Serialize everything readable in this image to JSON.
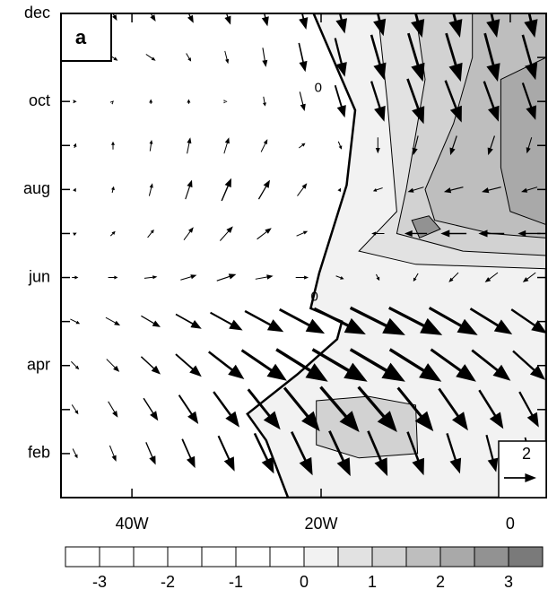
{
  "chart_data": {
    "type": "hovmoller",
    "panel_label": "a",
    "xlim": [
      -47.5,
      3.8
    ],
    "ylim": [
      1,
      12
    ],
    "xticks": [
      {
        "value": -40,
        "label": "40W"
      },
      {
        "value": -20,
        "label": "20W"
      },
      0
    ],
    "yticks": [
      {
        "value": 2,
        "label": "feb"
      },
      {
        "value": 3,
        "label": null
      },
      {
        "value": 4,
        "label": "apr"
      },
      {
        "value": 5,
        "label": null
      },
      {
        "value": 6,
        "label": "jun"
      },
      {
        "value": 7,
        "label": null
      },
      {
        "value": 8,
        "label": "aug"
      },
      {
        "value": 9,
        "label": null
      },
      {
        "value": 10,
        "label": "oct"
      },
      {
        "value": 11,
        "label": null
      },
      {
        "value": 12,
        "label": "dec"
      }
    ],
    "levels": [
      -3.5,
      -3,
      -2.5,
      -2,
      -1.5,
      -1,
      -0.5,
      0,
      0.5,
      1,
      1.5,
      2,
      2.5,
      3,
      3.5
    ],
    "colors": [
      "#ffffff",
      "#ffffff",
      "#ffffff",
      "#ffffff",
      "#ffffff",
      "#ffffff",
      "#ffffff",
      "#f2f2f2",
      "#e2e2e2",
      "#d2d2d2",
      "#bebebe",
      "#a9a9a9",
      "#929292",
      "#7a7a7a"
    ],
    "colorbar_ticks": [
      -3,
      -2,
      -1,
      0,
      1,
      2,
      3
    ],
    "shaded_regions": [
      {
        "level": 0,
        "points": [
          [
            -20.8,
            12
          ],
          [
            3.8,
            12
          ],
          [
            3.8,
            1
          ],
          [
            -23.5,
            1
          ],
          [
            -25.8,
            2.3
          ],
          [
            -27.8,
            2.9
          ],
          [
            -22.5,
            3.8
          ],
          [
            -18.3,
            4.6
          ],
          [
            -17.8,
            5.0
          ],
          [
            -21.1,
            5.3
          ],
          [
            -20.2,
            6.1
          ],
          [
            -17.3,
            8.1
          ],
          [
            -16.4,
            9.8
          ]
        ]
      },
      {
        "level": 0.5,
        "points": [
          [
            -14,
            12
          ],
          [
            3.8,
            12
          ],
          [
            3.8,
            6.2
          ],
          [
            -10,
            6.3
          ],
          [
            -16,
            6.6
          ],
          [
            -12,
            7.5
          ],
          [
            -13,
            10
          ]
        ]
      },
      {
        "level": 1,
        "points": [
          [
            -20.5,
            3.2
          ],
          [
            -15,
            3.3
          ],
          [
            -10,
            3.1
          ],
          [
            -9.8,
            2.0
          ],
          [
            -16,
            1.9
          ],
          [
            -20.5,
            2.2
          ]
        ]
      },
      {
        "level": 1,
        "points": [
          [
            -10,
            12
          ],
          [
            3.8,
            12
          ],
          [
            3.8,
            6.5
          ],
          [
            -5,
            6.6
          ],
          [
            -12,
            7.0
          ],
          [
            -11,
            8
          ],
          [
            -9,
            10.5
          ]
        ]
      },
      {
        "level": 1.5,
        "points": [
          [
            -4,
            12
          ],
          [
            3.8,
            12
          ],
          [
            3.8,
            6.9
          ],
          [
            -2,
            7.0
          ],
          [
            -8,
            7.3
          ],
          [
            -9,
            8
          ],
          [
            -6,
            9.5
          ],
          [
            -4,
            11
          ]
        ]
      },
      {
        "level": 2,
        "points": [
          [
            -1,
            10.5
          ],
          [
            3.8,
            11
          ],
          [
            3.8,
            7.2
          ],
          [
            0,
            7.5
          ],
          [
            -1,
            8.5
          ]
        ]
      },
      {
        "level": 2.5,
        "points": [
          [
            -10.4,
            7.3
          ],
          [
            -8.6,
            7.4
          ],
          [
            -7.4,
            7.1
          ],
          [
            -9.6,
            6.9
          ]
        ]
      }
    ],
    "contour_labels": [
      {
        "value": 0,
        "lon": -20.7,
        "month": 5.55
      },
      {
        "value": 0,
        "lon": -20.3,
        "month": 10.3
      }
    ],
    "vectors": {
      "lon": [
        -46,
        -42,
        -38,
        -34,
        -30,
        -26,
        -22,
        -18,
        -14,
        -10,
        -6,
        -2,
        2
      ],
      "months": [
        2,
        3,
        4,
        5,
        6,
        7,
        8,
        9,
        10,
        11,
        12
      ],
      "u": [
        [
          0.3,
          0.4,
          0.6,
          0.8,
          1,
          1.2,
          1.3,
          1.3,
          1.2,
          1,
          0.8,
          0.6,
          0.5
        ],
        [
          0.4,
          0.6,
          0.9,
          1.2,
          1.6,
          2,
          2.2,
          2.4,
          2.4,
          2.2,
          1.8,
          1.5,
          1.2
        ],
        [
          0.5,
          0.8,
          1.2,
          1.6,
          2.2,
          2.8,
          3.2,
          3.4,
          3.4,
          3.2,
          2.8,
          2.4,
          2
        ],
        [
          0.6,
          0.9,
          1.2,
          1.6,
          2,
          2.4,
          2.8,
          3.2,
          3.4,
          3.3,
          3,
          2.6,
          2.2
        ],
        [
          0.4,
          0.6,
          0.8,
          1,
          1.2,
          1.1,
          0.8,
          0.5,
          0.2,
          -0.3,
          -0.6,
          -0.8,
          -0.8
        ],
        [
          0.2,
          0.3,
          0.4,
          0.6,
          0.8,
          0.9,
          0.7,
          0,
          -0.8,
          -1.4,
          -1.6,
          -1.6,
          -1.4
        ],
        [
          0.1,
          0.1,
          0.2,
          0.4,
          0.6,
          0.7,
          0.6,
          0.1,
          -0.6,
          -1,
          -1.2,
          -1.2,
          -1
        ],
        [
          0.1,
          0,
          0.1,
          0.2,
          0.3,
          0.4,
          0.4,
          0.2,
          0,
          -0.3,
          -0.4,
          -0.4,
          -0.3
        ],
        [
          0.2,
          0.1,
          0,
          0,
          0.1,
          0.1,
          0.3,
          0.6,
          0.8,
          1,
          1,
          0.9,
          0.8
        ],
        [
          0.5,
          0.6,
          0.6,
          0.3,
          0.2,
          0.2,
          0.4,
          0.6,
          0.8,
          0.9,
          0.9,
          0.8,
          0.8
        ],
        [
          0.3,
          0.5,
          0.6,
          0.6,
          0.5,
          0.4,
          0.5,
          0.6,
          0.7,
          0.8,
          0.8,
          0.7,
          0.7
        ]
      ],
      "v": [
        [
          -0.6,
          -1,
          -1.4,
          -1.8,
          -2.2,
          -2.5,
          -2.7,
          -2.8,
          -2.8,
          -2.7,
          -2.5,
          -2.3,
          -2
        ],
        [
          -0.6,
          -1,
          -1.4,
          -1.8,
          -2.2,
          -2.5,
          -2.7,
          -2.8,
          -2.8,
          -2.7,
          -2.6,
          -2.4,
          -2.2
        ],
        [
          -0.5,
          -0.8,
          -1.1,
          -1.4,
          -1.7,
          -1.9,
          -2,
          -2,
          -2,
          -2,
          -2,
          -1.9,
          -1.8
        ],
        [
          -0.3,
          -0.5,
          -0.7,
          -0.9,
          -1.1,
          -1.3,
          -1.5,
          -1.6,
          -1.7,
          -1.7,
          -1.7,
          -1.6,
          -1.5
        ],
        [
          0,
          0,
          0.1,
          0.3,
          0.4,
          0.2,
          0,
          -0.2,
          -0.4,
          -0.5,
          -0.6,
          -0.6,
          -0.6
        ],
        [
          0.1,
          0.3,
          0.5,
          0.8,
          0.9,
          0.7,
          0.3,
          0,
          0,
          0,
          0,
          0,
          0
        ],
        [
          0.2,
          0.4,
          0.8,
          1.2,
          1.4,
          1.2,
          0.8,
          0.2,
          -0.2,
          -0.3,
          -0.3,
          -0.3,
          -0.3
        ],
        [
          0.3,
          0.5,
          0.7,
          1,
          1,
          0.8,
          0.3,
          -0.5,
          -1,
          -1.2,
          -1.2,
          -1.2,
          -1.0
        ],
        [
          0,
          0.1,
          0.3,
          0.3,
          0,
          -0.6,
          -1.2,
          -2,
          -2.5,
          -2.8,
          -2.6,
          -2.5,
          -2.3
        ],
        [
          -0.3,
          -0.4,
          -0.4,
          -0.5,
          -0.8,
          -1.2,
          -1.8,
          -2.4,
          -2.8,
          -3,
          -3,
          -3,
          -2.8
        ],
        [
          -0.8,
          -0.9,
          -1,
          -1.2,
          -1.4,
          -1.6,
          -2,
          -2.5,
          -2.8,
          -3,
          -3,
          -3,
          -3
        ]
      ]
    },
    "reference_vector": 2
  }
}
